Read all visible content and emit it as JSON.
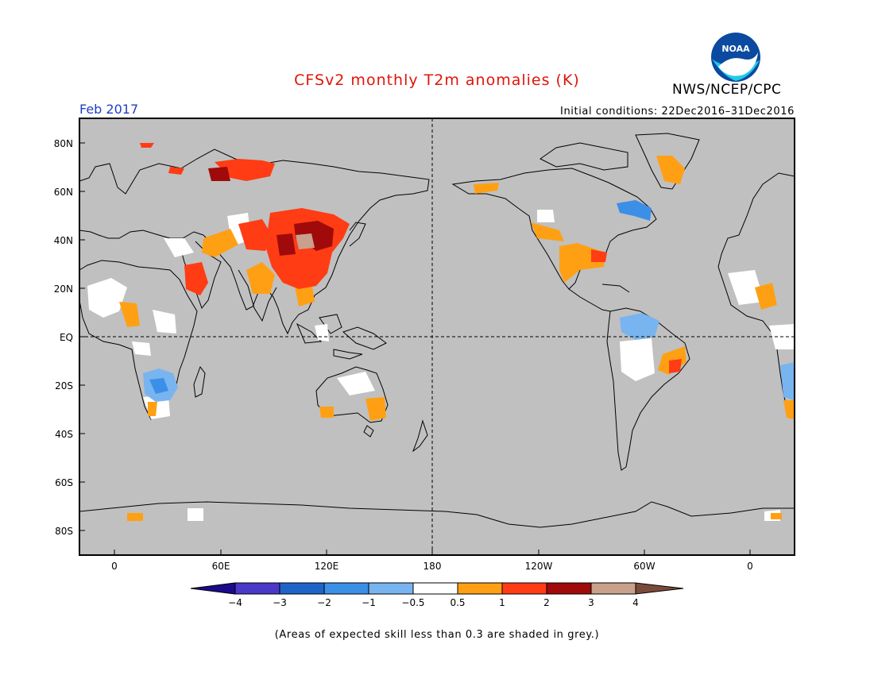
{
  "header": {
    "title": "CFSv2 monthly T2m anomalies (K)",
    "agency": "NWS/NCEP/CPC",
    "period": "Feb 2017",
    "initial_conditions": "Initial conditions: 22Dec2016–31Dec2016",
    "logo_text": "NOAA"
  },
  "colors": {
    "title": "#e0140a",
    "period": "#1f3fc8",
    "ocean_land": "#c0c0c0",
    "no_skill_grey": "#c8c8c8"
  },
  "map": {
    "lat_labels": [
      "80N",
      "60N",
      "40N",
      "20N",
      "EQ",
      "20S",
      "40S",
      "60S",
      "80S"
    ],
    "lon_labels": [
      "0",
      "60E",
      "120E",
      "180",
      "120W",
      "60W",
      "0"
    ]
  },
  "colorbar": {
    "tick_labels": [
      "−4",
      "−3",
      "−2",
      "−1",
      "−0.5",
      "0.5",
      "1",
      "2",
      "3",
      "4"
    ],
    "bins": [
      {
        "color": "#1b0a8c"
      },
      {
        "color": "#4a38c8"
      },
      {
        "color": "#1e64c8"
      },
      {
        "color": "#3c8fe6"
      },
      {
        "color": "#78b4f0"
      },
      {
        "color": "#ffffff"
      },
      {
        "color": "#ffa014"
      },
      {
        "color": "#ff3c14"
      },
      {
        "color": "#a00a0a"
      },
      {
        "color": "#c8a08c"
      },
      {
        "color": "#7a4a3a"
      }
    ]
  },
  "footnote": "(Areas of expected skill less than 0.3 are shaded in grey.)"
}
